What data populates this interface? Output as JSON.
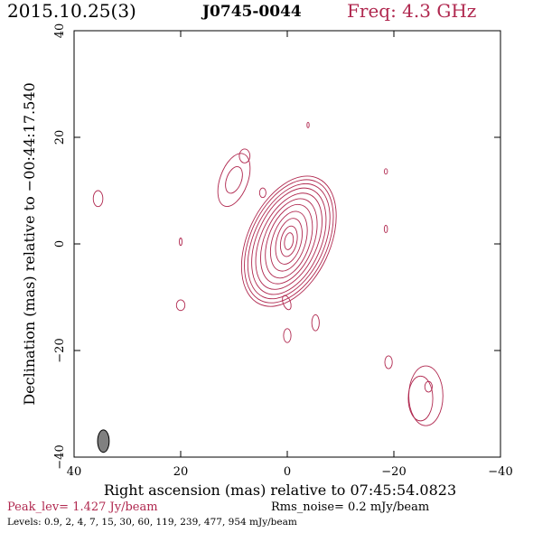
{
  "header": {
    "date": "2015.10.25(3)",
    "source": "J0745-0044",
    "frequency": "Freq: 4.3 GHz"
  },
  "footer": {
    "peak": "Peak_lev=  1.427 Jy/beam",
    "rms": "Rms_noise=  0.2 mJy/beam",
    "levels": "Levels: 0.9,   2,   4,   7,  15,  30,  60, 119, 239, 477, 954 mJy/beam"
  },
  "colors": {
    "contour": "#b0284f",
    "peak_text": "#b0284f",
    "beam_fill": "#808080"
  },
  "chart_data": {
    "type": "contour",
    "xlabel": "Right ascension (mas) relative to 07:45:54.0823",
    "ylabel": "Declination (mas) relative to −00:44:17.540",
    "xlim": [
      40,
      -40
    ],
    "ylim": [
      -40,
      40
    ],
    "x_ticks": [
      40,
      20,
      0,
      -20,
      -40
    ],
    "y_ticks": [
      -40,
      -20,
      0,
      20,
      40
    ],
    "x_tick_labels": [
      "40",
      "20",
      "0",
      "−20",
      "−40"
    ],
    "y_tick_labels": [
      "−40",
      "−20",
      "0",
      "20",
      "40"
    ],
    "beam": {
      "x": 34.5,
      "y": -37,
      "major_mas": 4.2,
      "minor_mas": 2.0,
      "pa_deg": 0
    },
    "core": {
      "x": -0.3,
      "y": 0.5,
      "levels": [
        {
          "rx": 7.7,
          "ry": 13.0,
          "angle": 25
        },
        {
          "rx": 7.2,
          "ry": 12.3,
          "angle": 25
        },
        {
          "rx": 6.6,
          "ry": 11.5,
          "angle": 25
        },
        {
          "rx": 6.0,
          "ry": 10.6,
          "angle": 24
        },
        {
          "rx": 5.3,
          "ry": 9.6,
          "angle": 24
        },
        {
          "rx": 4.6,
          "ry": 8.4,
          "angle": 22
        },
        {
          "rx": 3.9,
          "ry": 7.2,
          "angle": 20
        },
        {
          "rx": 3.1,
          "ry": 5.8,
          "angle": 18
        },
        {
          "rx": 2.3,
          "ry": 4.4,
          "angle": 15
        },
        {
          "rx": 1.5,
          "ry": 2.9,
          "angle": 12
        },
        {
          "rx": 0.8,
          "ry": 1.6,
          "angle": 10
        }
      ]
    },
    "islands": [
      {
        "x": 10.0,
        "y": 12.0,
        "rx": 2.6,
        "ry": 5.2,
        "angle": 20
      },
      {
        "x": 10.0,
        "y": 12.0,
        "rx": 1.4,
        "ry": 2.6,
        "angle": 20
      },
      {
        "x": 8.0,
        "y": 16.5,
        "rx": 1.0,
        "ry": 1.3,
        "angle": 0
      },
      {
        "x": 4.6,
        "y": 9.6,
        "rx": 0.6,
        "ry": 0.9,
        "angle": 0
      },
      {
        "x": 35.5,
        "y": 8.5,
        "rx": 0.9,
        "ry": 1.5,
        "angle": 0
      },
      {
        "x": 20.0,
        "y": 0.4,
        "rx": 0.25,
        "ry": 0.7,
        "angle": 0
      },
      {
        "x": 20.0,
        "y": -11.5,
        "rx": 0.8,
        "ry": 1.0,
        "angle": 0
      },
      {
        "x": -3.9,
        "y": 22.3,
        "rx": 0.2,
        "ry": 0.5,
        "angle": 0
      },
      {
        "x": -18.5,
        "y": 13.6,
        "rx": 0.3,
        "ry": 0.5,
        "angle": 0
      },
      {
        "x": -18.5,
        "y": 2.8,
        "rx": 0.3,
        "ry": 0.7,
        "angle": 0
      },
      {
        "x": 0.1,
        "y": -11.0,
        "rx": 0.7,
        "ry": 1.4,
        "angle": -20
      },
      {
        "x": -5.3,
        "y": -14.8,
        "rx": 0.7,
        "ry": 1.5,
        "angle": 0
      },
      {
        "x": 0.0,
        "y": -17.2,
        "rx": 0.7,
        "ry": 1.3,
        "angle": 0
      },
      {
        "x": -19.0,
        "y": -22.2,
        "rx": 0.7,
        "ry": 1.2,
        "angle": 0
      },
      {
        "x": -26.0,
        "y": -28.5,
        "rx": 3.2,
        "ry": 5.6,
        "angle": 0
      },
      {
        "x": -25.0,
        "y": -29.0,
        "rx": 2.3,
        "ry": 4.2,
        "angle": 0
      },
      {
        "x": -26.5,
        "y": -26.8,
        "rx": 0.7,
        "ry": 1.0,
        "angle": 0
      }
    ]
  }
}
